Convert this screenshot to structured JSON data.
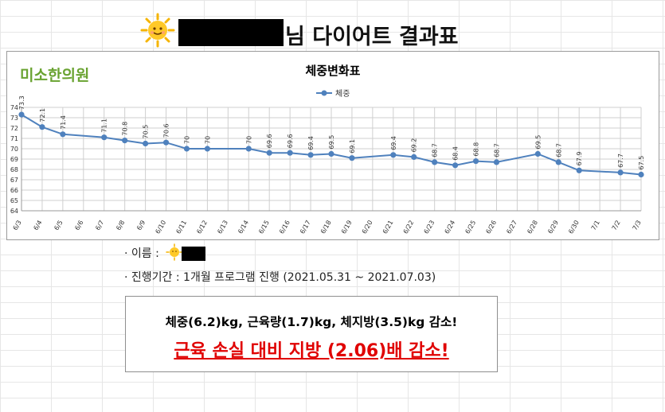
{
  "header": {
    "title_suffix": "님 다이어트 결과표",
    "sun_icon": "sun-emoji-icon",
    "name_redacted": true
  },
  "chart": {
    "logo_text": "미소한의원"
  },
  "chart_data": {
    "type": "line",
    "title": "체중변화표",
    "categories": [
      "6/3",
      "6/4",
      "6/5",
      "6/6",
      "6/7",
      "6/8",
      "6/9",
      "6/10",
      "6/11",
      "6/12",
      "6/13",
      "6/14",
      "6/15",
      "6/16",
      "6/17",
      "6/18",
      "6/19",
      "6/20",
      "6/21",
      "6/22",
      "6/23",
      "6/24",
      "6/25",
      "6/26",
      "6/27",
      "6/28",
      "6/29",
      "6/30",
      "7/1",
      "7/2",
      "7/3"
    ],
    "series": [
      {
        "name": "체중",
        "color": "#4f81bd",
        "values": [
          73.3,
          72.1,
          71.4,
          null,
          71.1,
          70.8,
          70.5,
          70.6,
          70,
          70,
          null,
          70,
          69.6,
          69.6,
          69.4,
          69.5,
          69.1,
          null,
          69.4,
          69.2,
          68.7,
          68.4,
          68.8,
          68.7,
          null,
          69.5,
          68.7,
          67.9,
          null,
          67.7,
          67.5
        ]
      }
    ],
    "ylim": [
      64,
      74
    ],
    "yticks": [
      64,
      65,
      66,
      67,
      68,
      69,
      70,
      71,
      72,
      73,
      74
    ],
    "grid": true,
    "legend": "top-center",
    "data_labels": true
  },
  "info": {
    "name_label": "· 이름 :",
    "period": "· 진행기간 : 1개월 프로그램 진행 (2021.05.31 ~ 2021.07.03)"
  },
  "summary": {
    "line1": "체중(6.2)kg, 근육량(1.7)kg, 체지방(3.5)kg 감소!",
    "line2": "근육 손실 대비 지방 (2.06)배 감소!",
    "line2_color": "#e00000"
  }
}
